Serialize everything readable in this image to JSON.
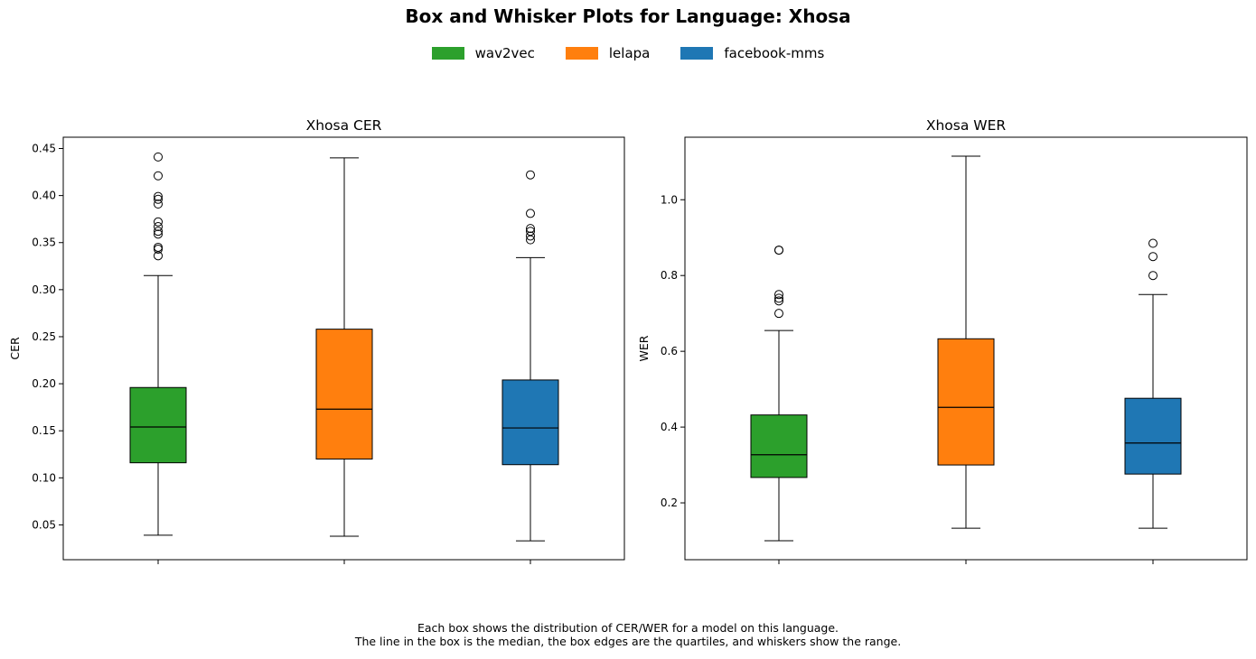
{
  "title": "Box and Whisker Plots for Language: Xhosa",
  "legend": [
    {
      "label": "wav2vec",
      "color": "#2ca02c"
    },
    {
      "label": "lelapa",
      "color": "#ff7f0e"
    },
    {
      "label": "facebook-mms",
      "color": "#1f77b4"
    }
  ],
  "caption": {
    "line1": "Each box shows the distribution of CER/WER for a model on this language.",
    "line2": "The line in the box is the median, the box edges are the quartiles, and whiskers show the range."
  },
  "chart_data": [
    {
      "type": "box",
      "title": "Xhosa CER",
      "xlabel": "",
      "ylabel": "CER",
      "ylim": [
        0.013,
        0.462
      ],
      "yticks": [
        0.05,
        0.1,
        0.15,
        0.2,
        0.25,
        0.3,
        0.35,
        0.4,
        0.45
      ],
      "ytick_labels": [
        "0.05",
        "0.10",
        "0.15",
        "0.20",
        "0.25",
        "0.30",
        "0.35",
        "0.40",
        "0.45"
      ],
      "series": [
        {
          "name": "wav2vec",
          "color": "#2ca02c",
          "whisker_low": 0.039,
          "q1": 0.116,
          "median": 0.154,
          "q3": 0.196,
          "whisker_high": 0.315,
          "outliers": [
            0.441,
            0.421,
            0.399,
            0.396,
            0.391,
            0.372,
            0.367,
            0.362,
            0.359,
            0.345,
            0.343,
            0.336
          ]
        },
        {
          "name": "lelapa",
          "color": "#ff7f0e",
          "whisker_low": 0.038,
          "q1": 0.12,
          "median": 0.173,
          "q3": 0.258,
          "whisker_high": 0.44,
          "outliers": []
        },
        {
          "name": "facebook-mms",
          "color": "#1f77b4",
          "whisker_low": 0.033,
          "q1": 0.114,
          "median": 0.153,
          "q3": 0.204,
          "whisker_high": 0.334,
          "outliers": [
            0.422,
            0.381,
            0.365,
            0.362,
            0.357,
            0.353
          ]
        }
      ]
    },
    {
      "type": "box",
      "title": "Xhosa WER",
      "xlabel": "",
      "ylabel": "WER",
      "ylim": [
        0.05,
        1.165
      ],
      "yticks": [
        0.2,
        0.4,
        0.6,
        0.8,
        1.0
      ],
      "ytick_labels": [
        "0.2",
        "0.4",
        "0.6",
        "0.8",
        "1.0"
      ],
      "series": [
        {
          "name": "wav2vec",
          "color": "#2ca02c",
          "whisker_low": 0.1,
          "q1": 0.267,
          "median": 0.327,
          "q3": 0.432,
          "whisker_high": 0.655,
          "outliers": [
            0.867,
            0.867,
            0.75,
            0.74,
            0.733,
            0.7
          ]
        },
        {
          "name": "lelapa",
          "color": "#ff7f0e",
          "whisker_low": 0.133,
          "q1": 0.3,
          "median": 0.452,
          "q3": 0.633,
          "whisker_high": 1.115,
          "outliers": []
        },
        {
          "name": "facebook-mms",
          "color": "#1f77b4",
          "whisker_low": 0.133,
          "q1": 0.276,
          "median": 0.358,
          "q3": 0.476,
          "whisker_high": 0.75,
          "outliers": [
            0.885,
            0.85,
            0.8
          ]
        }
      ]
    }
  ]
}
